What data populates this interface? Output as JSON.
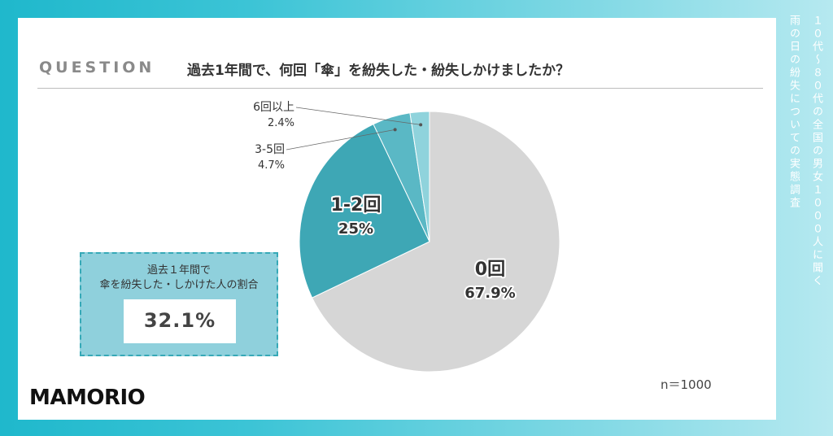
{
  "side_title": {
    "line1": "１０代〜８０代の全国の男女１０００人に聞く",
    "line2": "雨の日の紛失についての実態調査"
  },
  "question": {
    "label": "QUESTION",
    "text": "過去1年間で、何回「傘」を紛失した・紛失しかけましたか？"
  },
  "summary": {
    "title_line1": "過去１年間で",
    "title_line2": "傘を紛失した・しかけた人の割合",
    "value": "32.1%"
  },
  "sample_size": "n＝1000",
  "logo": "MAMORIO",
  "colors": {
    "zero": "#d6d6d6",
    "one_two": "#3ea7b5",
    "three_five": "#5ab8c5",
    "six_plus": "#8fd3dc",
    "summary_bg": "#8fd0dc"
  },
  "chart_data": {
    "type": "pie",
    "slices": [
      {
        "label": "0回",
        "value": 67.9,
        "value_label": "67.9%"
      },
      {
        "label": "1-2回",
        "value": 25,
        "value_label": "25%"
      },
      {
        "label": "3-5回",
        "value": 4.7,
        "value_label": "4.7%"
      },
      {
        "label": "6回以上",
        "value": 2.4,
        "value_label": "2.4%"
      }
    ]
  }
}
